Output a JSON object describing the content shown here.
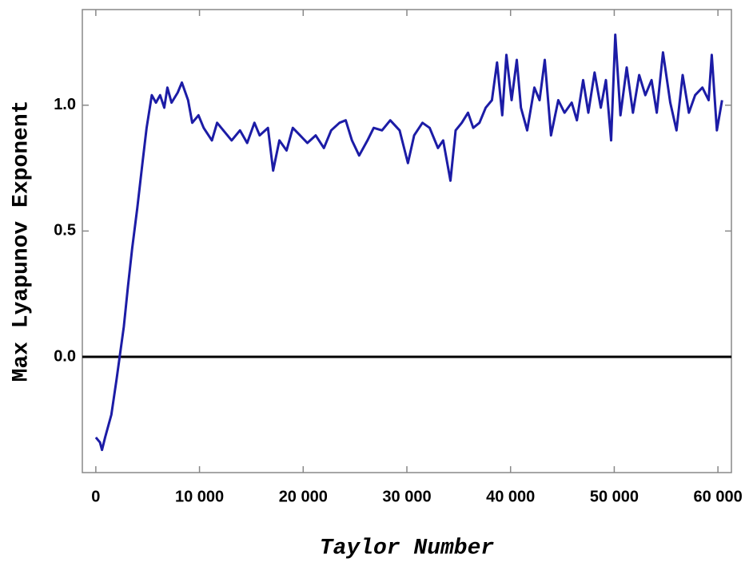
{
  "chart_data": {
    "type": "line",
    "xlabel": "Taylor Number",
    "ylabel": "Max Lyapunov Exponent",
    "xlim": [
      -1300,
      61300
    ],
    "ylim": [
      -0.46,
      1.38
    ],
    "xticks": [
      0,
      {
        "value": 10000,
        "label": "10 000"
      },
      {
        "value": 20000,
        "label": "20 000"
      },
      {
        "value": 30000,
        "label": "30 000"
      },
      {
        "value": 40000,
        "label": "40 000"
      },
      {
        "value": 50000,
        "label": "50 000"
      },
      {
        "value": 60000,
        "label": "60 000"
      }
    ],
    "yticks": [
      {
        "value": 0,
        "label": "0.0"
      },
      {
        "value": 0.5,
        "label": "0.5"
      },
      {
        "value": 1,
        "label": "1.0"
      }
    ],
    "reference_line": 0,
    "series": [
      {
        "color": "#1c1ca6",
        "x": [
          0,
          400,
          600,
          900,
          1500,
          2000,
          2300,
          2700,
          3100,
          3500,
          4000,
          4500,
          4900,
          5400,
          5800,
          6200,
          6600,
          6900,
          7300,
          7900,
          8300,
          8900,
          9300,
          9900,
          10400,
          11200,
          11700,
          12300,
          13100,
          13900,
          14600,
          15300,
          15800,
          16600,
          17100,
          17700,
          18400,
          19000,
          19700,
          20400,
          21200,
          22000,
          22700,
          23500,
          24100,
          24700,
          25400,
          26200,
          26800,
          27600,
          28400,
          29300,
          30100,
          30700,
          31500,
          32200,
          33000,
          33500,
          34200,
          34700,
          35300,
          35900,
          36400,
          37000,
          37600,
          38200,
          38700,
          39200,
          39600,
          40100,
          40600,
          41000,
          41600,
          42300,
          42800,
          43300,
          43900,
          44600,
          45200,
          45900,
          46400,
          47000,
          47500,
          48100,
          48700,
          49200,
          49700,
          50100,
          50600,
          51200,
          51800,
          52400,
          53000,
          53600,
          54100,
          54700,
          55400,
          56000,
          56600,
          57200,
          57800,
          58500,
          59100,
          59400,
          59900,
          60400
        ],
        "values": [
          -0.32,
          -0.34,
          -0.37,
          -0.32,
          -0.23,
          -0.09,
          0,
          0.12,
          0.28,
          0.43,
          0.59,
          0.77,
          0.91,
          1.04,
          1.01,
          1.04,
          0.99,
          1.07,
          1.01,
          1.05,
          1.09,
          1.02,
          0.93,
          0.96,
          0.91,
          0.86,
          0.93,
          0.9,
          0.86,
          0.9,
          0.85,
          0.93,
          0.88,
          0.91,
          0.74,
          0.86,
          0.82,
          0.91,
          0.88,
          0.85,
          0.88,
          0.83,
          0.9,
          0.93,
          0.94,
          0.86,
          0.8,
          0.86,
          0.91,
          0.9,
          0.94,
          0.9,
          0.77,
          0.88,
          0.93,
          0.91,
          0.83,
          0.86,
          0.7,
          0.9,
          0.93,
          0.97,
          0.91,
          0.93,
          0.99,
          1.02,
          1.17,
          0.96,
          1.2,
          1.02,
          1.18,
          0.99,
          0.9,
          1.07,
          1.02,
          1.18,
          0.88,
          1.02,
          0.97,
          1.01,
          0.94,
          1.1,
          0.97,
          1.13,
          0.99,
          1.1,
          0.86,
          1.28,
          0.96,
          1.15,
          0.97,
          1.12,
          1.04,
          1.1,
          0.97,
          1.21,
          1.01,
          0.9,
          1.12,
          0.97,
          1.04,
          1.07,
          1.02,
          1.2,
          0.9,
          1.02
        ]
      }
    ]
  }
}
